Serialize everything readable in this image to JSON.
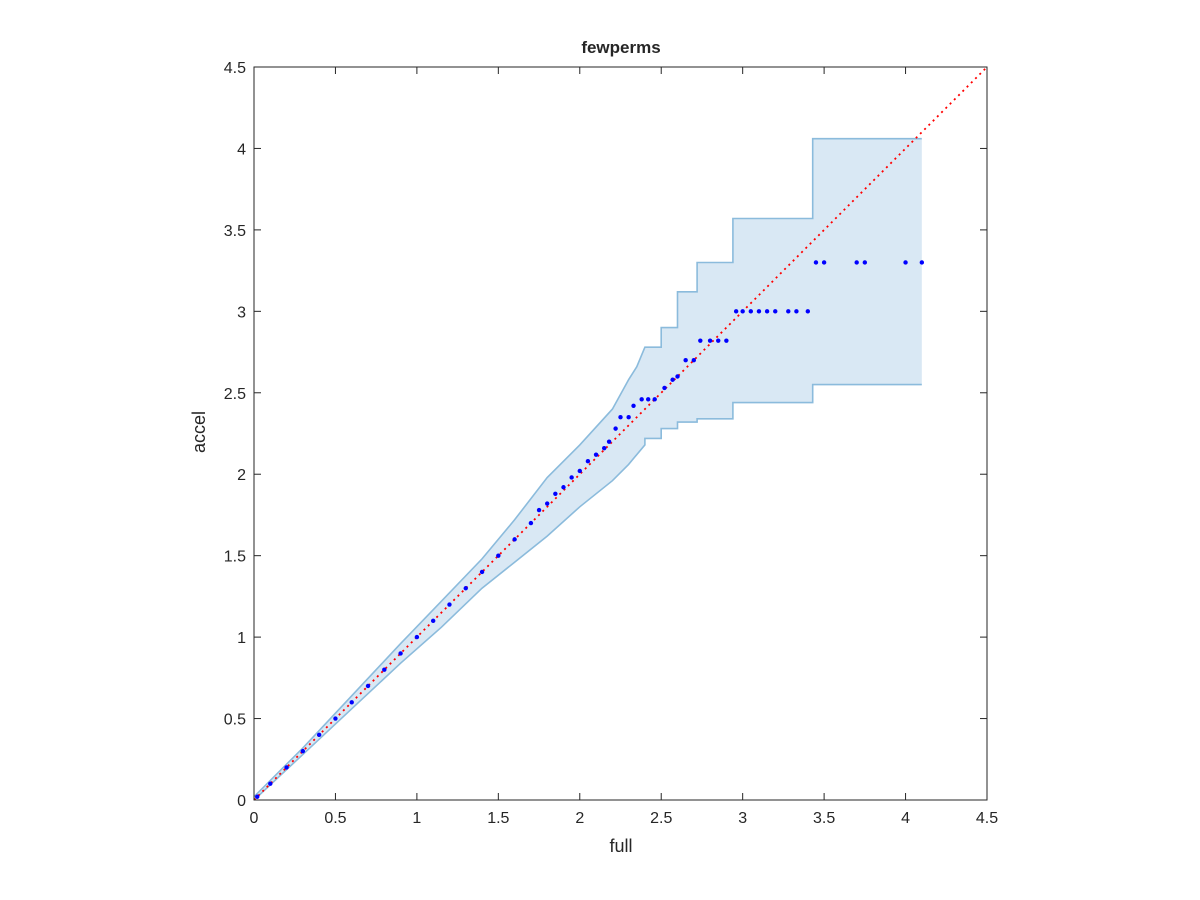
{
  "chart_data": {
    "type": "scatter",
    "title": "fewperms",
    "xlabel": "full",
    "ylabel": "accel",
    "xlim": [
      0,
      4.5
    ],
    "ylim": [
      0,
      4.5
    ],
    "xticks": [
      "0",
      "0.5",
      "1",
      "1.5",
      "2",
      "2.5",
      "3",
      "3.5",
      "4",
      "4.5"
    ],
    "yticks": [
      "0",
      "0.5",
      "1",
      "1.5",
      "2",
      "2.5",
      "3",
      "3.5",
      "4",
      "4.5"
    ],
    "grid": false,
    "colors": {
      "points": "#0000ff",
      "reference_line": "#ff0000",
      "band_fill": "#d9e8f4",
      "band_edge": "#8bbbdc",
      "axes": "#262626"
    },
    "reference_line": {
      "style": "dotted",
      "x": [
        0,
        4.5
      ],
      "y": [
        0,
        4.5
      ]
    },
    "confidence_band": {
      "upper": [
        [
          0,
          0.02
        ],
        [
          0.3,
          0.32
        ],
        [
          0.6,
          0.64
        ],
        [
          0.9,
          0.96
        ],
        [
          1.15,
          1.22
        ],
        [
          1.4,
          1.48
        ],
        [
          1.6,
          1.72
        ],
        [
          1.8,
          1.98
        ],
        [
          2.0,
          2.18
        ],
        [
          2.2,
          2.4
        ],
        [
          2.3,
          2.58
        ],
        [
          2.35,
          2.66
        ],
        [
          2.4,
          2.78
        ],
        [
          2.5,
          2.78
        ],
        [
          2.5,
          2.9
        ],
        [
          2.6,
          2.9
        ],
        [
          2.6,
          3.12
        ],
        [
          2.72,
          3.12
        ],
        [
          2.72,
          3.3
        ],
        [
          2.94,
          3.3
        ],
        [
          2.94,
          3.57
        ],
        [
          3.43,
          3.57
        ],
        [
          3.43,
          4.06
        ],
        [
          4.1,
          4.06
        ]
      ],
      "lower": [
        [
          0,
          0
        ],
        [
          0.3,
          0.28
        ],
        [
          0.6,
          0.56
        ],
        [
          0.9,
          0.84
        ],
        [
          1.15,
          1.06
        ],
        [
          1.4,
          1.3
        ],
        [
          1.6,
          1.46
        ],
        [
          1.8,
          1.62
        ],
        [
          2.0,
          1.8
        ],
        [
          2.2,
          1.96
        ],
        [
          2.3,
          2.06
        ],
        [
          2.4,
          2.18
        ],
        [
          2.4,
          2.22
        ],
        [
          2.5,
          2.22
        ],
        [
          2.5,
          2.28
        ],
        [
          2.6,
          2.28
        ],
        [
          2.6,
          2.32
        ],
        [
          2.72,
          2.32
        ],
        [
          2.72,
          2.34
        ],
        [
          2.94,
          2.34
        ],
        [
          2.94,
          2.44
        ],
        [
          3.43,
          2.44
        ],
        [
          3.43,
          2.55
        ],
        [
          4.1,
          2.55
        ]
      ]
    },
    "series": [
      {
        "x": [
          0.02,
          0.1,
          0.2,
          0.3,
          0.4,
          0.5,
          0.6,
          0.7,
          0.8,
          0.9,
          1.0,
          1.1,
          1.2,
          1.3,
          1.4,
          1.5,
          1.6,
          1.7,
          1.75,
          1.8,
          1.85,
          1.9,
          1.95,
          2.0,
          2.05,
          2.1,
          2.15,
          2.18,
          2.22,
          2.25,
          2.3,
          2.33,
          2.38,
          2.42,
          2.46,
          2.52,
          2.57,
          2.6,
          2.65,
          2.7,
          2.74,
          2.8,
          2.85,
          2.9,
          2.96,
          3.0,
          3.05,
          3.1,
          3.15,
          3.2,
          3.28,
          3.33,
          3.4,
          3.45,
          3.5,
          3.7,
          3.75,
          4.0,
          4.1
        ],
        "y": [
          0.02,
          0.1,
          0.2,
          0.3,
          0.4,
          0.5,
          0.6,
          0.7,
          0.8,
          0.9,
          1.0,
          1.1,
          1.2,
          1.3,
          1.4,
          1.5,
          1.6,
          1.7,
          1.78,
          1.82,
          1.88,
          1.92,
          1.98,
          2.02,
          2.08,
          2.12,
          2.16,
          2.2,
          2.28,
          2.35,
          2.35,
          2.42,
          2.46,
          2.46,
          2.46,
          2.53,
          2.58,
          2.6,
          2.7,
          2.7,
          2.82,
          2.82,
          2.82,
          2.82,
          3.0,
          3.0,
          3.0,
          3.0,
          3.0,
          3.0,
          3.0,
          3.0,
          3.0,
          3.3,
          3.3,
          3.3,
          3.3,
          3.3,
          3.3
        ]
      }
    ]
  }
}
